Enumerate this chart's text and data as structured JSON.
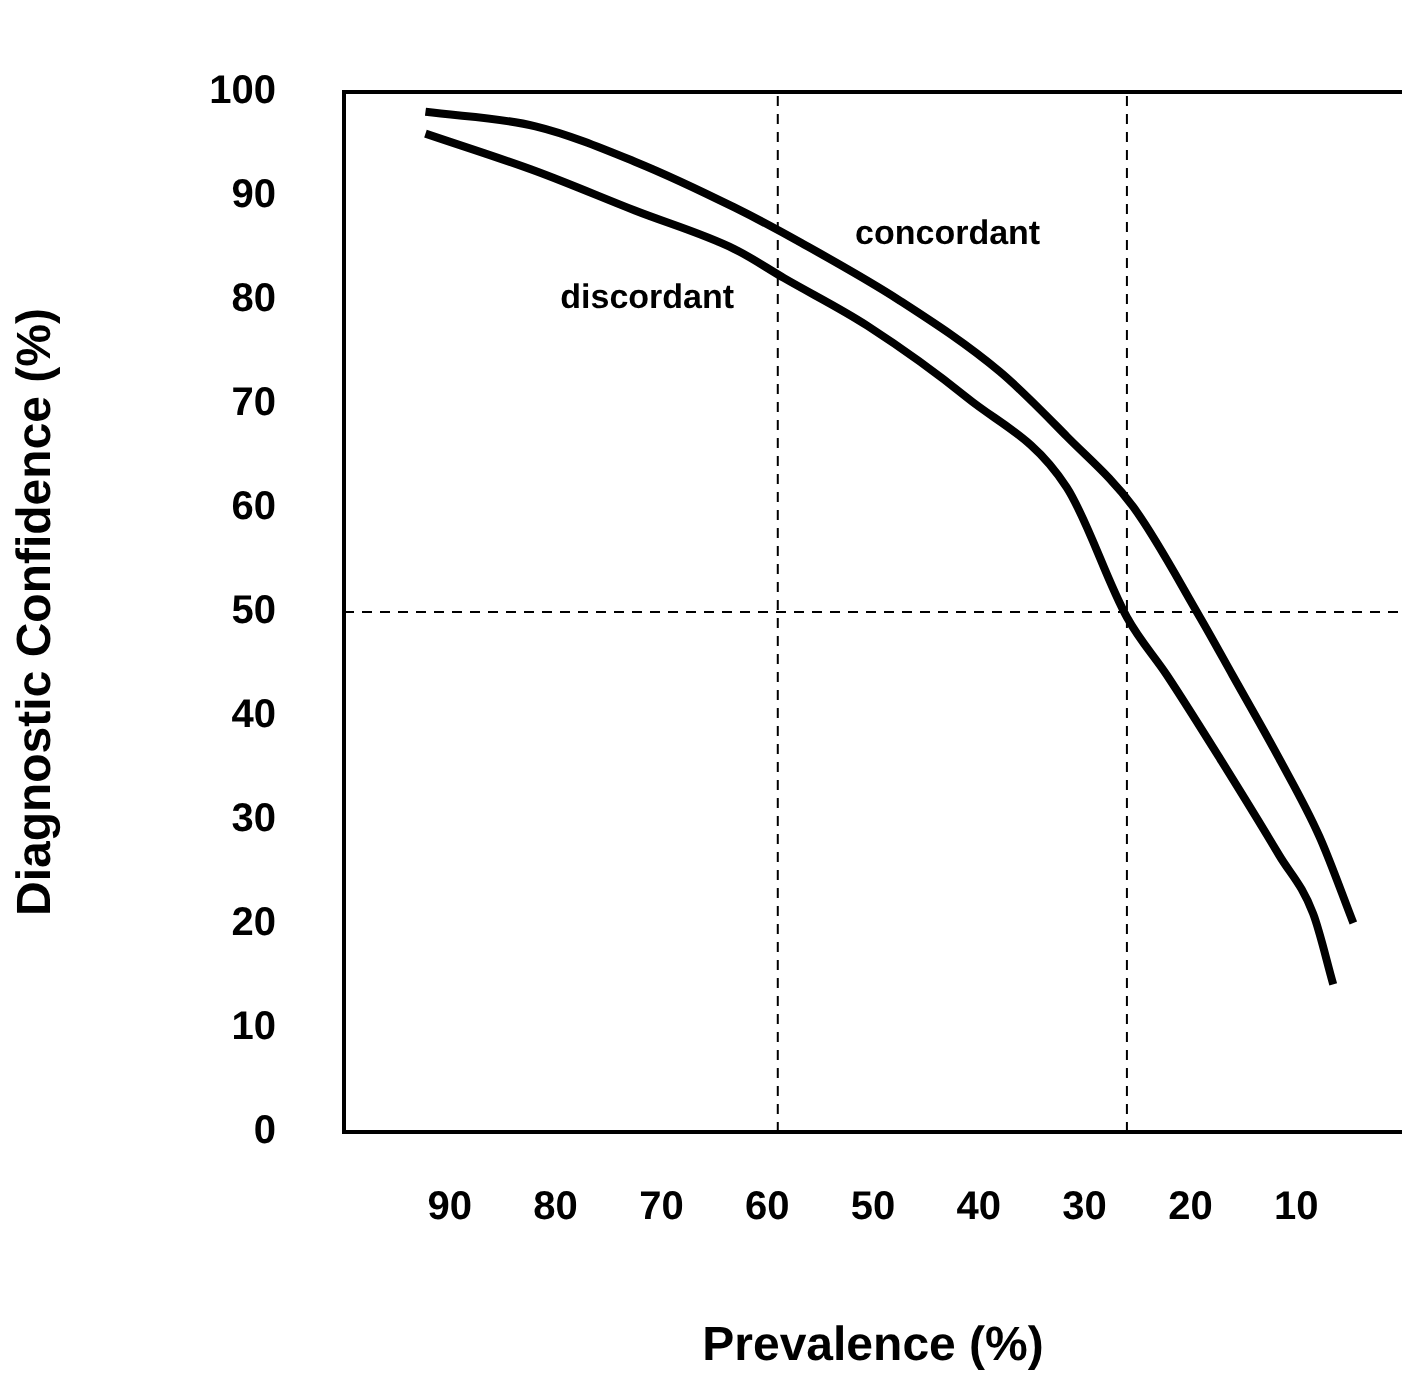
{
  "chart_data": {
    "type": "line",
    "xlabel": "Prevalence (%)",
    "ylabel": "Diagnostic Confidence (%)",
    "xlim": [
      100,
      0
    ],
    "xticks": [
      90,
      80,
      70,
      60,
      50,
      40,
      30,
      20,
      10
    ],
    "ylim": [
      0,
      100
    ],
    "yticks": [
      0,
      10,
      20,
      30,
      40,
      50,
      60,
      70,
      80,
      90,
      100
    ],
    "grid": false,
    "legend": false,
    "marker": "none",
    "line_style": "solid",
    "series": [
      {
        "name": "concordant",
        "color": "#000000",
        "x": [
          92.3,
          81.9,
          72.5,
          63.1,
          56.8,
          47.4,
          38.0,
          31.7,
          25.4,
          19.1,
          16.0,
          11.6,
          7.8,
          4.6
        ],
        "values": [
          98.1,
          96.7,
          93.3,
          88.9,
          85.5,
          79.9,
          73.1,
          66.9,
          60.1,
          49.5,
          43.9,
          35.9,
          28.4,
          20.1
        ]
      },
      {
        "name": "discordant",
        "color": "#000000",
        "x": [
          92.3,
          81.9,
          72.5,
          63.1,
          58.4,
          50.5,
          41.1,
          31.7,
          26.0,
          22.2,
          17.2,
          11.6,
          8.4,
          6.5
        ],
        "values": [
          96.0,
          92.4,
          88.6,
          84.9,
          82.1,
          77.5,
          70.6,
          62.0,
          49.5,
          43.9,
          35.9,
          26.6,
          21.0,
          14.2
        ]
      }
    ],
    "ref_lines": [
      {
        "axis": "x",
        "value": 59,
        "color": "#000000",
        "line_style": "dashed"
      },
      {
        "axis": "x",
        "value": 26,
        "color": "#000000",
        "line_style": "dashed"
      },
      {
        "axis": "y",
        "value": 50,
        "color": "#000000",
        "line_style": "dashed"
      }
    ]
  }
}
